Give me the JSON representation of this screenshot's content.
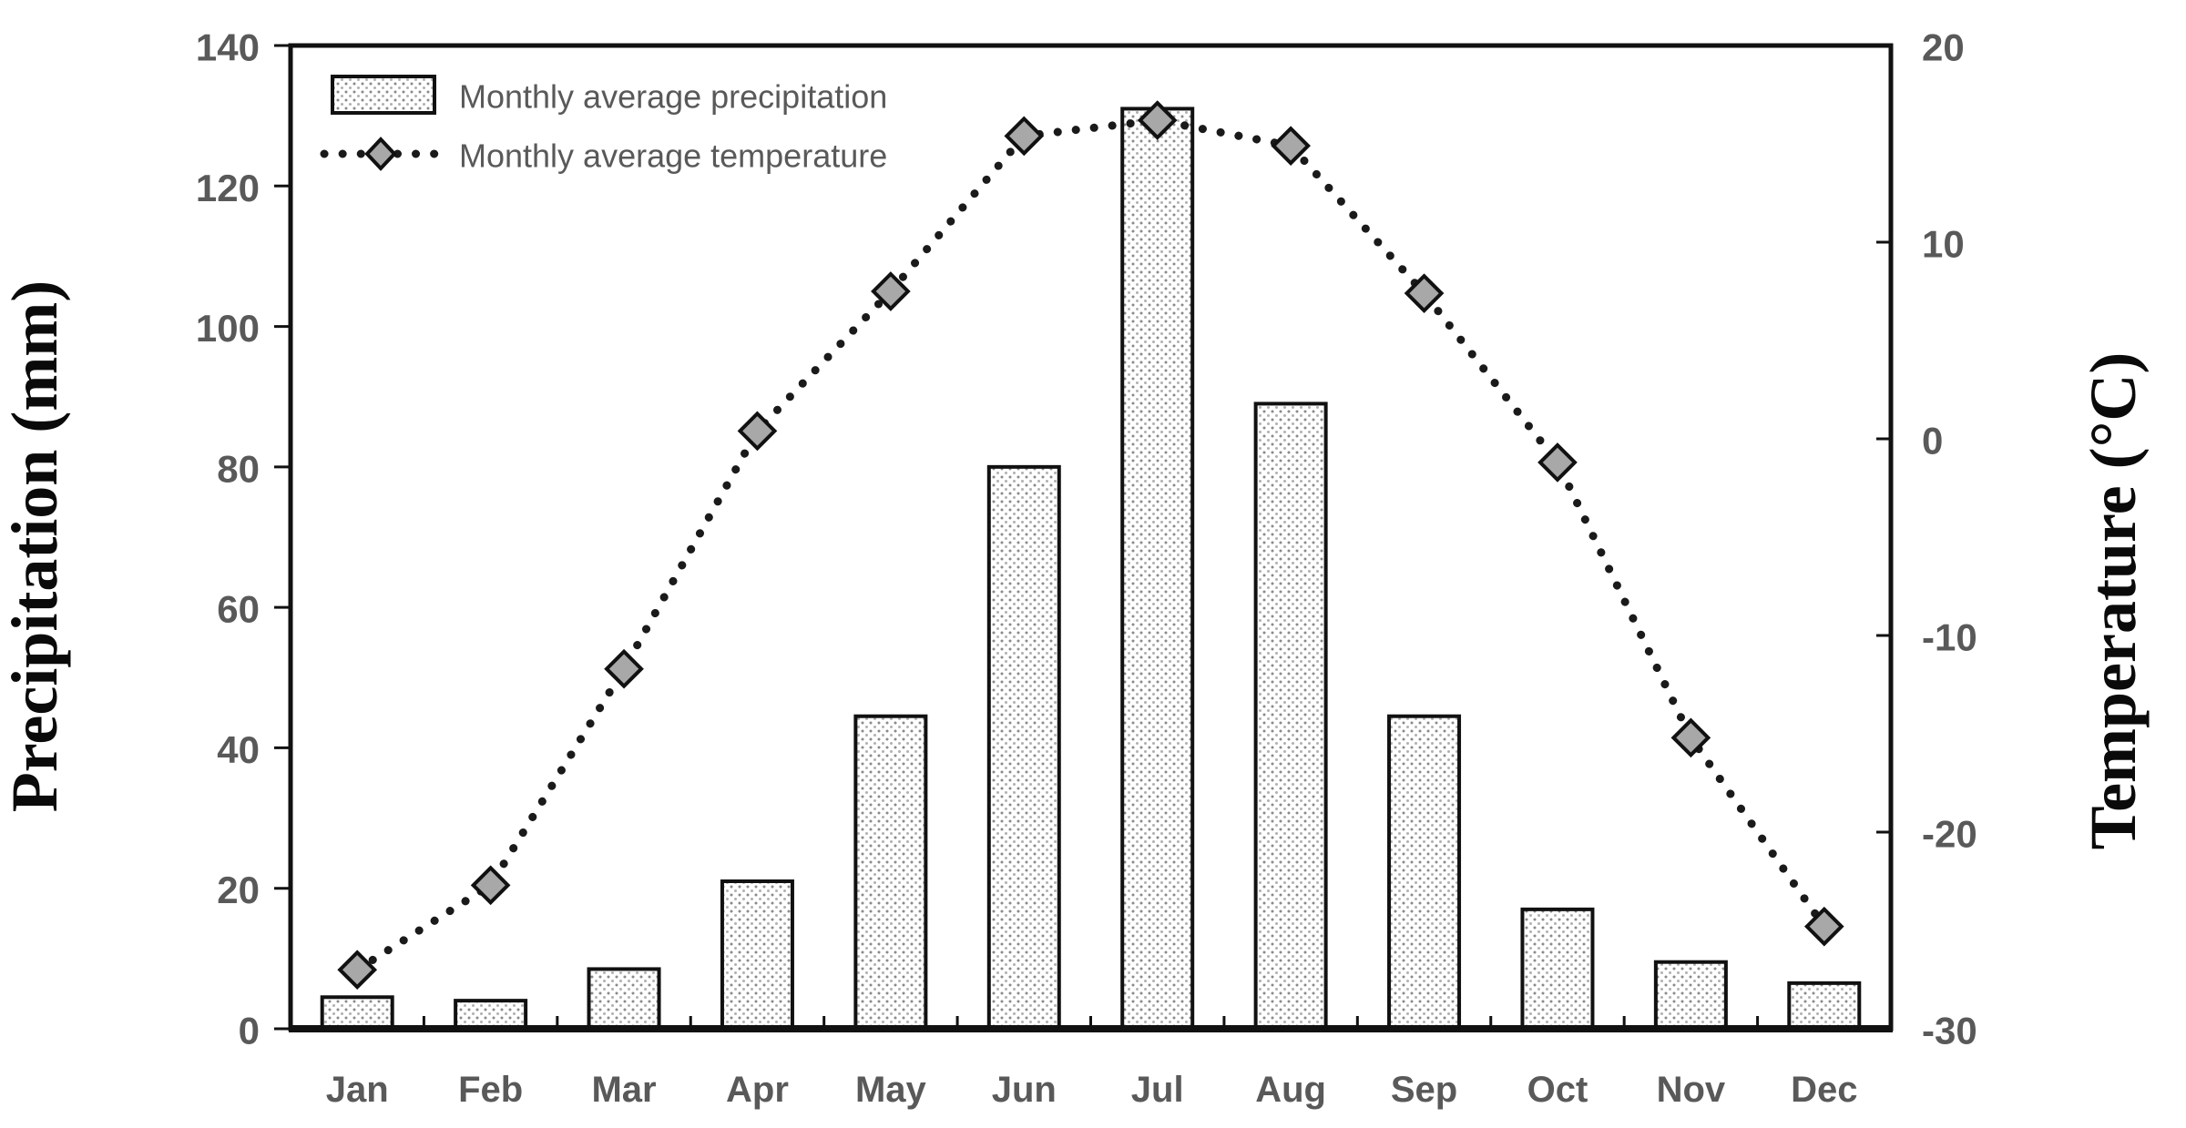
{
  "chart_data": {
    "type": "combo-bar-line",
    "title": "",
    "categories": [
      "Jan",
      "Feb",
      "Mar",
      "Apr",
      "May",
      "Jun",
      "Jul",
      "Aug",
      "Sep",
      "Oct",
      "Nov",
      "Dec"
    ],
    "series": [
      {
        "name": "Monthly average precipitation",
        "type": "bar",
        "axis": "left",
        "values": [
          4.5,
          4,
          8.5,
          21,
          44.5,
          80,
          131,
          89,
          44.5,
          17,
          9.5,
          6.5
        ]
      },
      {
        "name": "Monthly average temperature",
        "type": "line-dotted-diamond",
        "axis": "right",
        "values": [
          -27,
          -22.7,
          -11.7,
          0.4,
          7.5,
          15.4,
          16.2,
          14.9,
          7.4,
          -1.2,
          -15.2,
          -24.8
        ]
      }
    ],
    "left_axis": {
      "label": "Precipitation (mm)",
      "min": 0,
      "max": 140,
      "ticks": [
        0,
        20,
        40,
        60,
        80,
        100,
        120,
        140
      ]
    },
    "right_axis": {
      "label": "Temperature (°C)",
      "min": -30,
      "max": 20,
      "ticks": [
        -30,
        -20,
        -10,
        0,
        10,
        20
      ]
    },
    "legend_position": "top-left",
    "grid": false
  },
  "legend": {
    "precipitation_label": "Monthly average precipitation",
    "temperature_label": "Monthly average temperature"
  },
  "axis_titles": {
    "left": "Precipitation (mm)",
    "right": "Temperature (°C)"
  },
  "colors": {
    "axis": "#111111",
    "bar_dot": "#8a8a8a",
    "bar_stroke": "#111111",
    "line": "#1a1a1a",
    "marker_fill": "#a8a8a8",
    "marker_stroke": "#111111",
    "label_gray": "#595959",
    "title_black": "#0a0a0a",
    "background": "#ffffff"
  }
}
